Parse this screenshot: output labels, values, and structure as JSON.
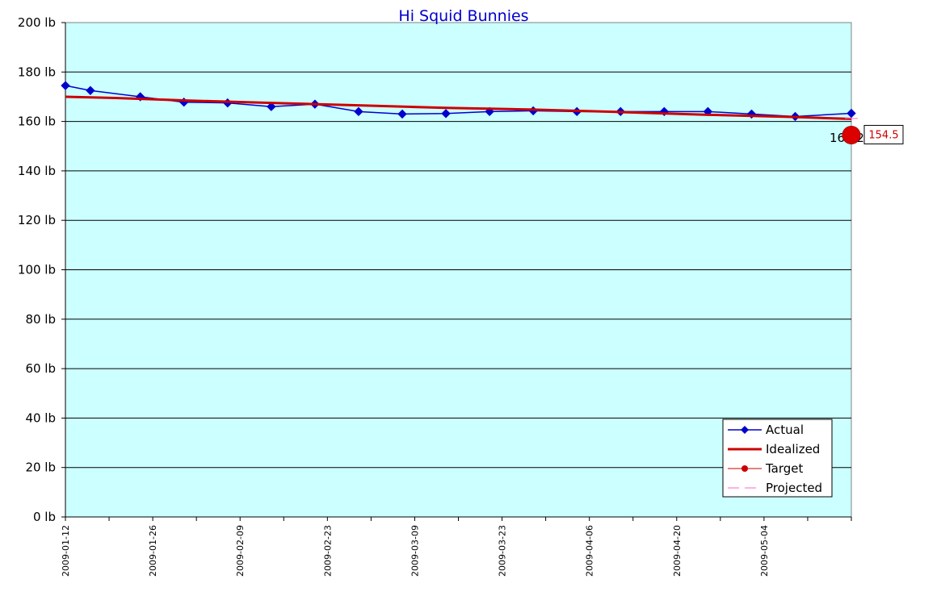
{
  "chart_data": {
    "type": "line",
    "title": "Hi Squid Bunnies",
    "xlabel": "",
    "ylabel": "",
    "y_unit_suffix": " lb",
    "ylim": [
      0,
      200
    ],
    "y_ticks": [
      0,
      20,
      40,
      60,
      80,
      100,
      120,
      140,
      160,
      180,
      200
    ],
    "xlim": [
      "2009-01-12",
      "2009-05-18"
    ],
    "x_ticks": [
      "2009-01-12",
      "2009-01-26",
      "2009-02-09",
      "2009-02-23",
      "2009-03-09",
      "2009-03-23",
      "2009-04-06",
      "2009-04-20",
      "2009-05-04"
    ],
    "grid": true,
    "legend_position": "bottom-right",
    "plot_background": "#ccffff",
    "series": [
      {
        "name": "Actual",
        "color": "#0000cc",
        "marker": "diamond",
        "x": [
          "2009-01-12",
          "2009-01-16",
          "2009-01-24",
          "2009-01-31",
          "2009-02-07",
          "2009-02-14",
          "2009-02-21",
          "2009-02-28",
          "2009-03-07",
          "2009-03-14",
          "2009-03-21",
          "2009-03-28",
          "2009-04-04",
          "2009-04-11",
          "2009-04-18",
          "2009-04-25",
          "2009-05-02",
          "2009-05-09",
          "2009-05-18"
        ],
        "y": [
          174.5,
          172.5,
          170.0,
          167.8,
          167.5,
          166.0,
          167.0,
          164.0,
          163.0,
          163.2,
          164.0,
          164.3,
          164.0,
          164.0,
          164.0,
          164.0,
          163.0,
          162.0,
          163.3
        ]
      },
      {
        "name": "Idealized",
        "color": "#cc0000",
        "x": [
          "2009-01-12",
          "2009-01-20",
          "2009-01-31",
          "2009-02-14",
          "2009-02-28",
          "2009-03-14",
          "2009-03-28",
          "2009-04-11",
          "2009-04-25",
          "2009-05-09",
          "2009-05-18"
        ],
        "y": [
          170.0,
          169.5,
          168.5,
          167.5,
          166.5,
          165.5,
          164.8,
          163.8,
          162.7,
          161.8,
          161.0
        ]
      },
      {
        "name": "Target",
        "color": "#cc0000",
        "marker": "circle",
        "x": [
          "2009-05-18"
        ],
        "y": [
          154.5
        ]
      },
      {
        "name": "Projected",
        "color": "#ff66cc",
        "dash": true,
        "x": [
          "2009-05-18",
          "2009-05-18"
        ],
        "y": [
          161.2,
          161.2
        ]
      }
    ],
    "annotations": [
      {
        "text": "161.2",
        "x": "2009-05-18",
        "y": 161.2,
        "color": "#000000"
      },
      {
        "text": "154.5",
        "x": "2009-05-18",
        "y": 154.5,
        "color": "#cc0000",
        "boxed": true
      }
    ]
  }
}
